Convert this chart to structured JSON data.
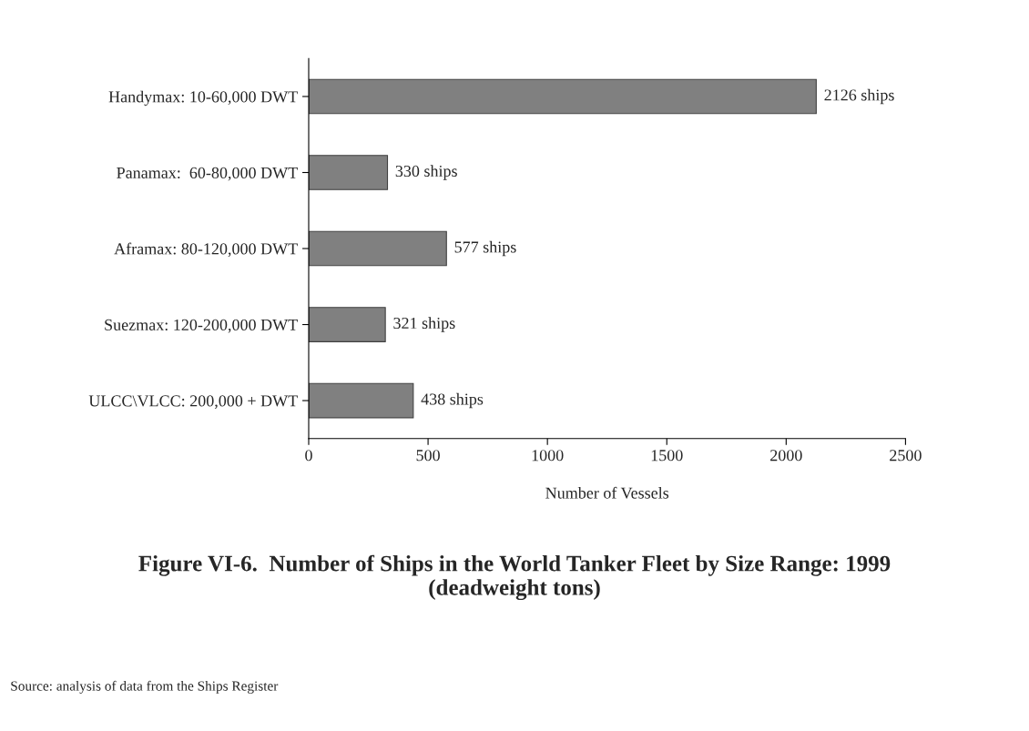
{
  "chart_data": {
    "type": "bar",
    "orientation": "horizontal",
    "title": "Figure VI-6.  Number of Ships in the World Tanker Fleet by Size Range: 1999\n(deadweight tons)",
    "xlabel": "Number of Vessels",
    "categories": [
      "Handymax: 10-60,000 DWT",
      "Panamax:  60-80,000 DWT",
      "Aframax: 80-120,000 DWT",
      "Suezmax: 120-200,000 DWT",
      "ULCC\\VLCC: 200,000 + DWT"
    ],
    "values": [
      2126,
      330,
      577,
      321,
      438
    ],
    "value_labels": [
      "2126 ships",
      "330 ships",
      "577 ships",
      "321 ships",
      "438 ships"
    ],
    "color": "#808080",
    "xlim": [
      0,
      2500
    ],
    "xticks": [
      0,
      500,
      1000,
      1500,
      2000,
      2500
    ],
    "grid": false,
    "legend": false,
    "annotations": [
      "Source: analysis of data from the Ships Register"
    ]
  }
}
